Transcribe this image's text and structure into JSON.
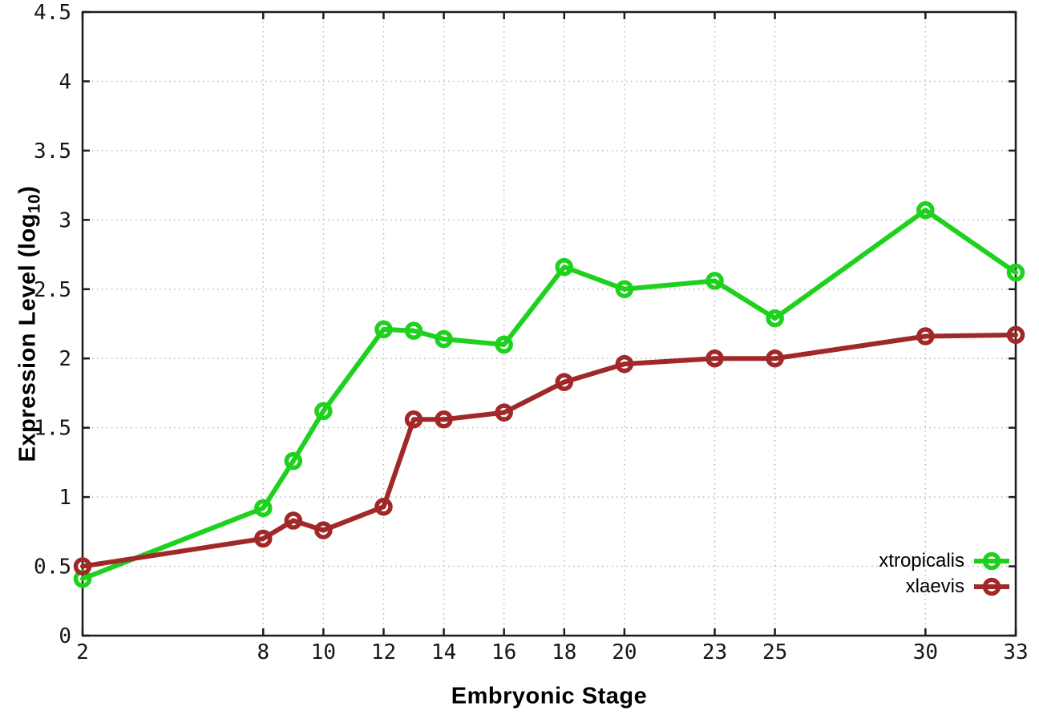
{
  "chart_data": {
    "type": "line",
    "title": "",
    "xlabel": "Embryonic Stage",
    "ylabel": "Expression Level (log10)",
    "ylabel_parts": {
      "prefix": "Expression Level (log",
      "sub": "10",
      "suffix": ")"
    },
    "xlim": [
      2,
      33
    ],
    "ylim": [
      0,
      4.5
    ],
    "x_ticks": [
      2,
      8,
      10,
      12,
      14,
      16,
      18,
      20,
      23,
      25,
      30,
      33
    ],
    "y_ticks": [
      0,
      0.5,
      1,
      1.5,
      2,
      2.5,
      3,
      3.5,
      4,
      4.5
    ],
    "grid": true,
    "legend_position": "inside-bottom-right",
    "x": [
      2,
      8,
      9,
      10,
      12,
      13,
      14,
      16,
      18,
      20,
      23,
      25,
      30,
      33
    ],
    "series": [
      {
        "name": "xtropicalis",
        "color": "#1dd11d",
        "values": [
          0.41,
          0.92,
          1.26,
          1.62,
          2.21,
          2.2,
          2.14,
          2.1,
          2.66,
          2.5,
          2.56,
          2.29,
          3.07,
          2.62
        ]
      },
      {
        "name": "xlaevis",
        "color": "#a02828",
        "values": [
          0.5,
          0.7,
          0.83,
          0.76,
          0.93,
          1.56,
          1.56,
          1.61,
          1.83,
          1.96,
          2.0,
          2.0,
          2.16,
          2.17
        ]
      }
    ]
  },
  "colors": {
    "background": "#ffffff",
    "grid": "#b9b9b9",
    "axis": "#1c1c1c",
    "tick_text": "#161616",
    "series_green": "#1dd11d",
    "series_red": "#a02828"
  }
}
